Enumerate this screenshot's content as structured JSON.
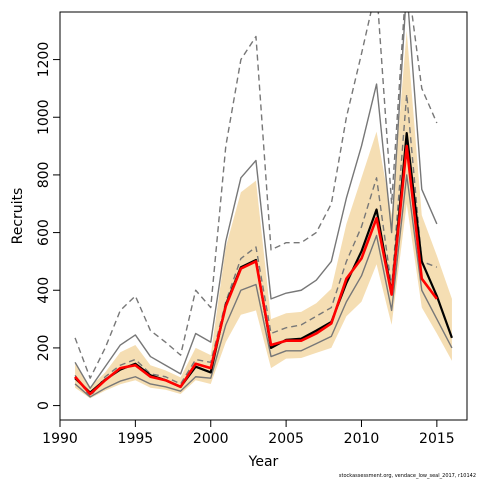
{
  "chart_data": {
    "type": "line",
    "xlabel": "Year",
    "ylabel": "Recruits",
    "xlim": [
      1990,
      2017
    ],
    "ylim": [
      -50,
      1365
    ],
    "xticks": [
      1990,
      1995,
      2000,
      2005,
      2010,
      2015
    ],
    "yticks": [
      0,
      200,
      400,
      600,
      800,
      1000,
      1200
    ],
    "footnote": "stockassessment.org, vendace_low_seal_2017, r10142",
    "colors": {
      "band": "#f5deb3",
      "black_line": "#000000",
      "red_line": "#ff0000",
      "grey_lines": "#777777"
    },
    "series": [
      {
        "key": "band_low",
        "style": "band",
        "x": [
          1991,
          1992,
          1993,
          1994,
          1995,
          1996,
          1997,
          1998,
          1999,
          2000,
          2001,
          2002,
          2003,
          2004,
          2005,
          2006,
          2007,
          2008,
          2009,
          2010,
          2011,
          2012,
          2013,
          2014,
          2015,
          2016
        ],
        "y": [
          62,
          25,
          52,
          74,
          88,
          62,
          55,
          40,
          88,
          75,
          220,
          315,
          330,
          130,
          163,
          165,
          183,
          200,
          310,
          360,
          490,
          280,
          700,
          340,
          250,
          155
        ]
      },
      {
        "key": "band_high",
        "style": "band",
        "x": [
          1991,
          1992,
          1993,
          1994,
          1995,
          1996,
          1997,
          1998,
          1999,
          2000,
          2001,
          2002,
          2003,
          2004,
          2005,
          2006,
          2007,
          2008,
          2009,
          2010,
          2011,
          2012,
          2013,
          2014,
          2015,
          2016
        ],
        "y": [
          150,
          65,
          115,
          185,
          210,
          140,
          122,
          98,
          200,
          175,
          550,
          740,
          780,
          300,
          320,
          325,
          355,
          405,
          630,
          790,
          950,
          660,
          1300,
          660,
          520,
          370
        ]
      },
      {
        "key": "black",
        "style": "black",
        "x": [
          1991,
          1992,
          1993,
          1994,
          1995,
          1996,
          1997,
          1998,
          1999,
          2000,
          2001,
          2002,
          2003,
          2004,
          2005,
          2006,
          2007,
          2008,
          2009,
          2010,
          2011,
          2012,
          2013,
          2014,
          2015,
          2016
        ],
        "y": [
          95,
          45,
          90,
          125,
          145,
          105,
          88,
          65,
          135,
          115,
          350,
          480,
          505,
          200,
          228,
          232,
          260,
          290,
          425,
          535,
          680,
          390,
          945,
          500,
          380,
          235
        ]
      },
      {
        "key": "red",
        "style": "red",
        "x": [
          1991,
          1992,
          1993,
          1994,
          1995,
          1996,
          1997,
          1998,
          1999,
          2000,
          2001,
          2002,
          2003,
          2004,
          2005,
          2006,
          2007,
          2008,
          2009,
          2010,
          2011,
          2012,
          2013,
          2014,
          2015
        ],
        "y": [
          100,
          40,
          88,
          130,
          140,
          100,
          88,
          65,
          145,
          130,
          345,
          475,
          500,
          210,
          225,
          225,
          250,
          285,
          440,
          510,
          650,
          385,
          900,
          440,
          370
        ]
      },
      {
        "key": "grey_solid_low",
        "style": "grey-solid",
        "x": [
          1991,
          1992,
          1993,
          1994,
          1995,
          1996,
          1997,
          1998,
          1999,
          2000,
          2001,
          2002,
          2003,
          2004,
          2005,
          2006,
          2007,
          2008,
          2009,
          2010,
          2011,
          2012,
          2013,
          2014,
          2015,
          2016
        ],
        "y": [
          75,
          30,
          60,
          85,
          100,
          75,
          65,
          50,
          100,
          95,
          280,
          400,
          420,
          170,
          190,
          190,
          215,
          240,
          360,
          450,
          590,
          330,
          800,
          400,
          300,
          200
        ]
      },
      {
        "key": "grey_solid_high",
        "style": "grey-solid",
        "x": [
          1991,
          1992,
          1993,
          1994,
          1995,
          1996,
          1997,
          1998,
          1999,
          2000,
          2001,
          2002,
          2003,
          2004,
          2005,
          2006,
          2007,
          2008,
          2009,
          2010,
          2011,
          2012,
          2013,
          2014,
          2015
        ],
        "y": [
          150,
          60,
          135,
          210,
          245,
          170,
          140,
          110,
          250,
          220,
          570,
          790,
          850,
          370,
          390,
          400,
          435,
          500,
          720,
          900,
          1115,
          600,
          1450,
          750,
          630
        ]
      },
      {
        "key": "grey_dashed_low",
        "style": "grey-dashed",
        "x": [
          1991,
          1992,
          1993,
          1994,
          1995,
          1996,
          1997,
          1998,
          1999,
          2000,
          2001,
          2002,
          2003,
          2004,
          2005,
          2006,
          2007,
          2008,
          2009,
          2010,
          2011,
          2012,
          2013,
          2014,
          2015
        ],
        "y": [
          105,
          30,
          100,
          140,
          160,
          110,
          100,
          75,
          160,
          150,
          360,
          510,
          550,
          250,
          270,
          280,
          310,
          340,
          500,
          620,
          790,
          410,
          1080,
          500,
          480
        ]
      },
      {
        "key": "grey_dashed_high",
        "style": "grey-dashed",
        "x": [
          1991,
          1992,
          1993,
          1994,
          1995,
          1996,
          1997,
          1998,
          1999,
          2000,
          2001,
          2002,
          2003,
          2004,
          2005,
          2006,
          2007,
          2008,
          2009,
          2010,
          2011,
          2012,
          2013,
          2014,
          2015
        ],
        "y": [
          235,
          95,
          200,
          330,
          380,
          260,
          220,
          175,
          400,
          340,
          900,
          1200,
          1280,
          540,
          565,
          565,
          600,
          700,
          1000,
          1220,
          1450,
          700,
          1500,
          1100,
          980
        ]
      }
    ]
  }
}
